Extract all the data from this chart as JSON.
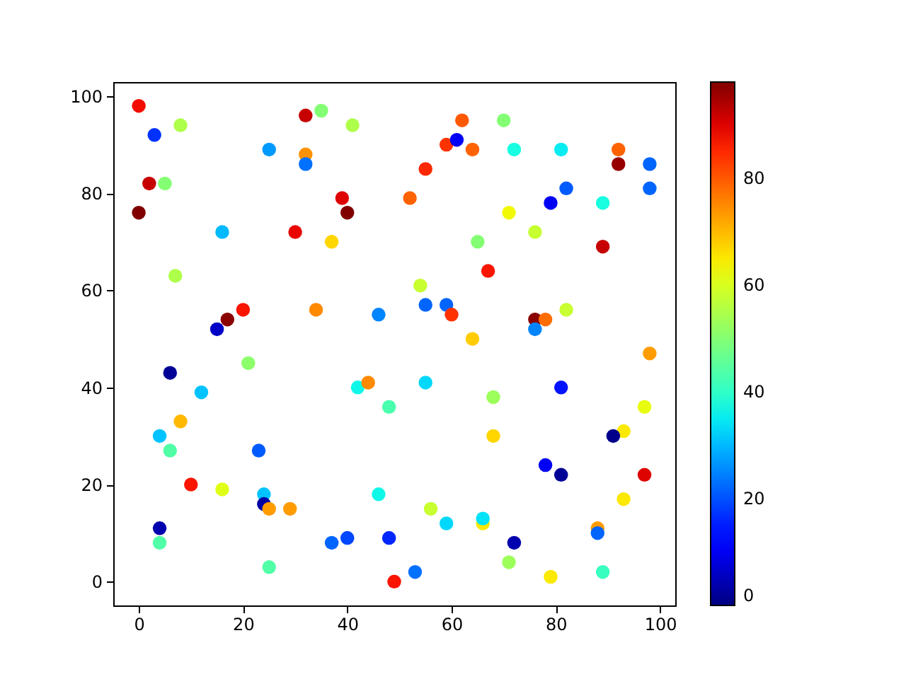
{
  "chart_data": {
    "type": "scatter",
    "x": [
      0,
      3,
      8,
      2,
      5,
      0,
      32,
      35,
      41,
      25,
      32,
      32,
      39,
      40,
      16,
      30,
      37,
      7,
      20,
      34,
      46,
      17,
      15,
      62,
      70,
      59,
      61,
      64,
      72,
      81,
      92,
      92,
      98,
      55,
      98,
      82,
      79,
      89,
      52,
      71,
      76,
      65,
      89,
      67,
      54,
      55,
      59,
      60,
      64,
      82,
      76,
      78,
      76,
      21,
      6,
      12,
      8,
      4,
      6,
      23,
      10,
      16,
      24,
      24,
      25,
      29,
      4,
      4,
      25,
      42,
      44,
      48,
      46,
      37,
      40,
      48,
      49,
      98,
      55,
      68,
      81,
      68,
      97,
      93,
      91,
      78,
      81,
      97,
      93,
      56,
      59,
      66,
      66,
      88,
      88,
      72,
      71,
      79,
      89,
      53
    ],
    "values": [
      98,
      92,
      94,
      82,
      82,
      76,
      96,
      97,
      94,
      89,
      88,
      86,
      79,
      76,
      72,
      72,
      70,
      63,
      56,
      56,
      55,
      54,
      52,
      95,
      95,
      90,
      91,
      89,
      89,
      89,
      89,
      86,
      86,
      85,
      81,
      81,
      78,
      78,
      79,
      76,
      72,
      70,
      69,
      64,
      61,
      57,
      57,
      55,
      50,
      56,
      54,
      54,
      52,
      45,
      43,
      39,
      33,
      30,
      27,
      27,
      20,
      19,
      18,
      16,
      15,
      15,
      11,
      8,
      3,
      40,
      41,
      36,
      18,
      8,
      9,
      9,
      0,
      47,
      41,
      38,
      40,
      30,
      36,
      31,
      30,
      24,
      22,
      22,
      17,
      15,
      12,
      12,
      13,
      11,
      10,
      8,
      4,
      1,
      2,
      2
    ],
    "cvalues": [
      88,
      17,
      55,
      92,
      50,
      98,
      92,
      50,
      55,
      27,
      74,
      23,
      90,
      98,
      30,
      89,
      67,
      55,
      87,
      75,
      25,
      97,
      6,
      80,
      50,
      84,
      10,
      79,
      37,
      35,
      79,
      96,
      22,
      85,
      22,
      21,
      10,
      37,
      79,
      63,
      58,
      50,
      92,
      87,
      58,
      22,
      22,
      84,
      68,
      58,
      97,
      78,
      25,
      51,
      2,
      31,
      70,
      31,
      44,
      21,
      87,
      61,
      31,
      3,
      73,
      73,
      4,
      44,
      44,
      36,
      75,
      43,
      36,
      22,
      19,
      16,
      87,
      73,
      33,
      53,
      14,
      67,
      62,
      65,
      1,
      10,
      2,
      90,
      65,
      58,
      33,
      65,
      34,
      73,
      22,
      4,
      53,
      65,
      41,
      23
    ],
    "xlim": [
      -4.9,
      102.9
    ],
    "ylim": [
      -4.9,
      102.9
    ],
    "xticks": [
      0,
      20,
      40,
      60,
      80,
      100
    ],
    "yticks": [
      0,
      20,
      40,
      60,
      80,
      100
    ],
    "clim": [
      0,
      98
    ],
    "cticks": [
      0,
      20,
      40,
      60,
      80
    ],
    "marker": "circle"
  }
}
